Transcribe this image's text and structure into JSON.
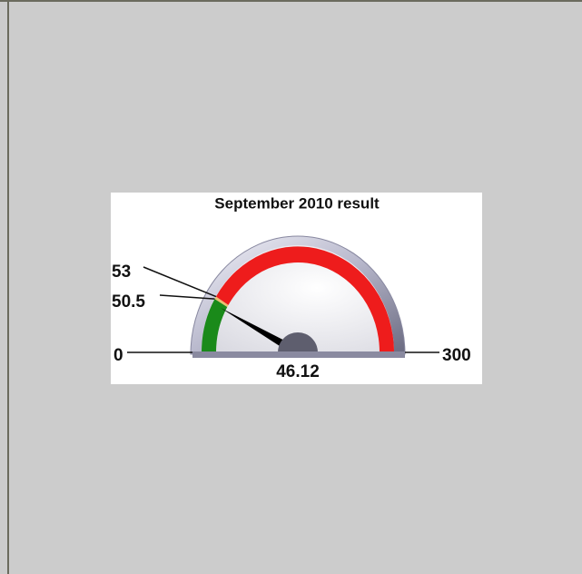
{
  "chart_data": {
    "type": "gauge",
    "title": "September 2010 result",
    "min": 0,
    "max": 300,
    "thresholds": [
      50.5,
      53
    ],
    "value": 46.12,
    "colors": [
      "#1a8a1a",
      "#e8c070",
      "#ee1c1c"
    ],
    "needle_color": "#000000"
  }
}
